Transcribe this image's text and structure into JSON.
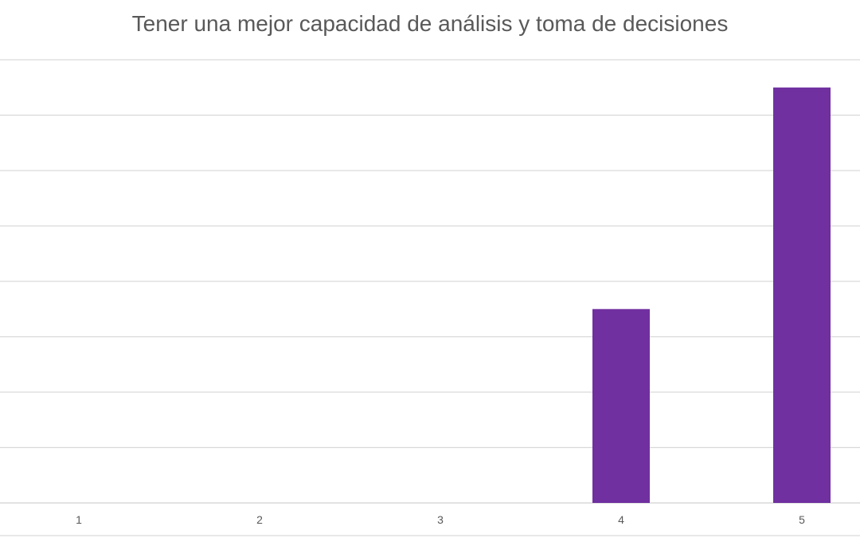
{
  "chart_data": {
    "type": "bar",
    "title": "Tener una mejor capacidad de análisis y toma de decisiones",
    "xlabel": "",
    "ylabel": "",
    "categories": [
      "1",
      "2",
      "3",
      "4",
      "5"
    ],
    "values": [
      0,
      0,
      0,
      3.5,
      7.5
    ],
    "ylim": [
      0,
      8
    ],
    "grid": true,
    "y_tick_labels_shown": false,
    "colors": {
      "bar": "#7030a0",
      "grid": "#d9d9d9",
      "text": "#595959"
    }
  }
}
